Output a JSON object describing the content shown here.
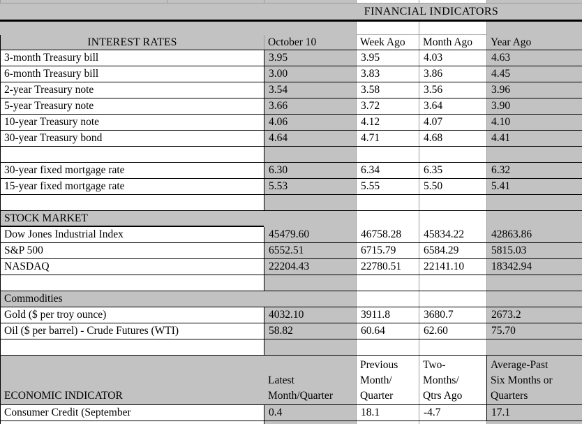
{
  "table": {
    "title": "FINANCIAL INDICATORS",
    "accent_gray": "#c2c2c2",
    "interest": {
      "header": "INTEREST RATES",
      "columns": [
        "October 10",
        "Week Ago",
        "Month Ago",
        "Year Ago"
      ],
      "rows": [
        {
          "label": "3-month Treasury bill",
          "values": [
            "3.95",
            "3.95",
            "4.03",
            "4.63"
          ]
        },
        {
          "label": "6-month Treasury bill",
          "values": [
            "3.00",
            "3.83",
            "3.86",
            "4.45"
          ]
        },
        {
          "label": "2-year Treasury note",
          "values": [
            "3.54",
            "3.58",
            "3.56",
            "3.96"
          ]
        },
        {
          "label": "5-year Treasury note",
          "values": [
            "3.66",
            "3.72",
            "3.64",
            "3.90"
          ]
        },
        {
          "label": "10-year Treasury note",
          "values": [
            "4.06",
            "4.12",
            "4.07",
            "4.10"
          ]
        },
        {
          "label": "30-year Treasury bond",
          "values": [
            "4.64",
            "4.71",
            "4.68",
            "4.41"
          ]
        }
      ],
      "mortgage_rows": [
        {
          "label": "30-year fixed mortgage rate",
          "values": [
            "6.30",
            "6.34",
            "6.35",
            "6.32"
          ]
        },
        {
          "label": "15-year fixed mortgage rate",
          "values": [
            "5.53",
            "5.55",
            "5.50",
            "5.41"
          ]
        }
      ]
    },
    "stock": {
      "header": "STOCK MARKET",
      "rows": [
        {
          "label": "Dow Jones Industrial Index",
          "values": [
            "45479.60",
            "46758.28",
            "45834.22",
            "42863.86"
          ]
        },
        {
          "label": "S&P 500",
          "values": [
            "6552.51",
            "6715.79",
            "6584.29",
            "5815.03"
          ]
        },
        {
          "label": "NASDAQ",
          "values": [
            "22204.43",
            "22780.51",
            "22141.10",
            "18342.94"
          ]
        }
      ]
    },
    "commodities": {
      "header": "Commodities",
      "rows": [
        {
          "label": "Gold ($ per troy ounce)",
          "values": [
            "4032.10",
            "3911.8",
            "3680.7",
            "2673.2"
          ]
        },
        {
          "label": "Oil ($ per barrel) - Crude Futures (WTI)",
          "values": [
            "58.82",
            "60.64",
            "62.60",
            "75.70"
          ]
        }
      ]
    },
    "economic": {
      "header": "ECONOMIC INDICATOR",
      "columns": [
        "Latest\nMonth/Quarter",
        "Previous\nMonth/\nQuarter",
        "Two-\nMonths/\nQtrs Ago",
        "Average-Past\nSix Months or\nQuarters"
      ],
      "rows": [
        {
          "label": "Consumer Credit (September",
          "values": [
            "0.4",
            "18.1",
            "-4.7",
            "17.1"
          ]
        }
      ]
    }
  }
}
